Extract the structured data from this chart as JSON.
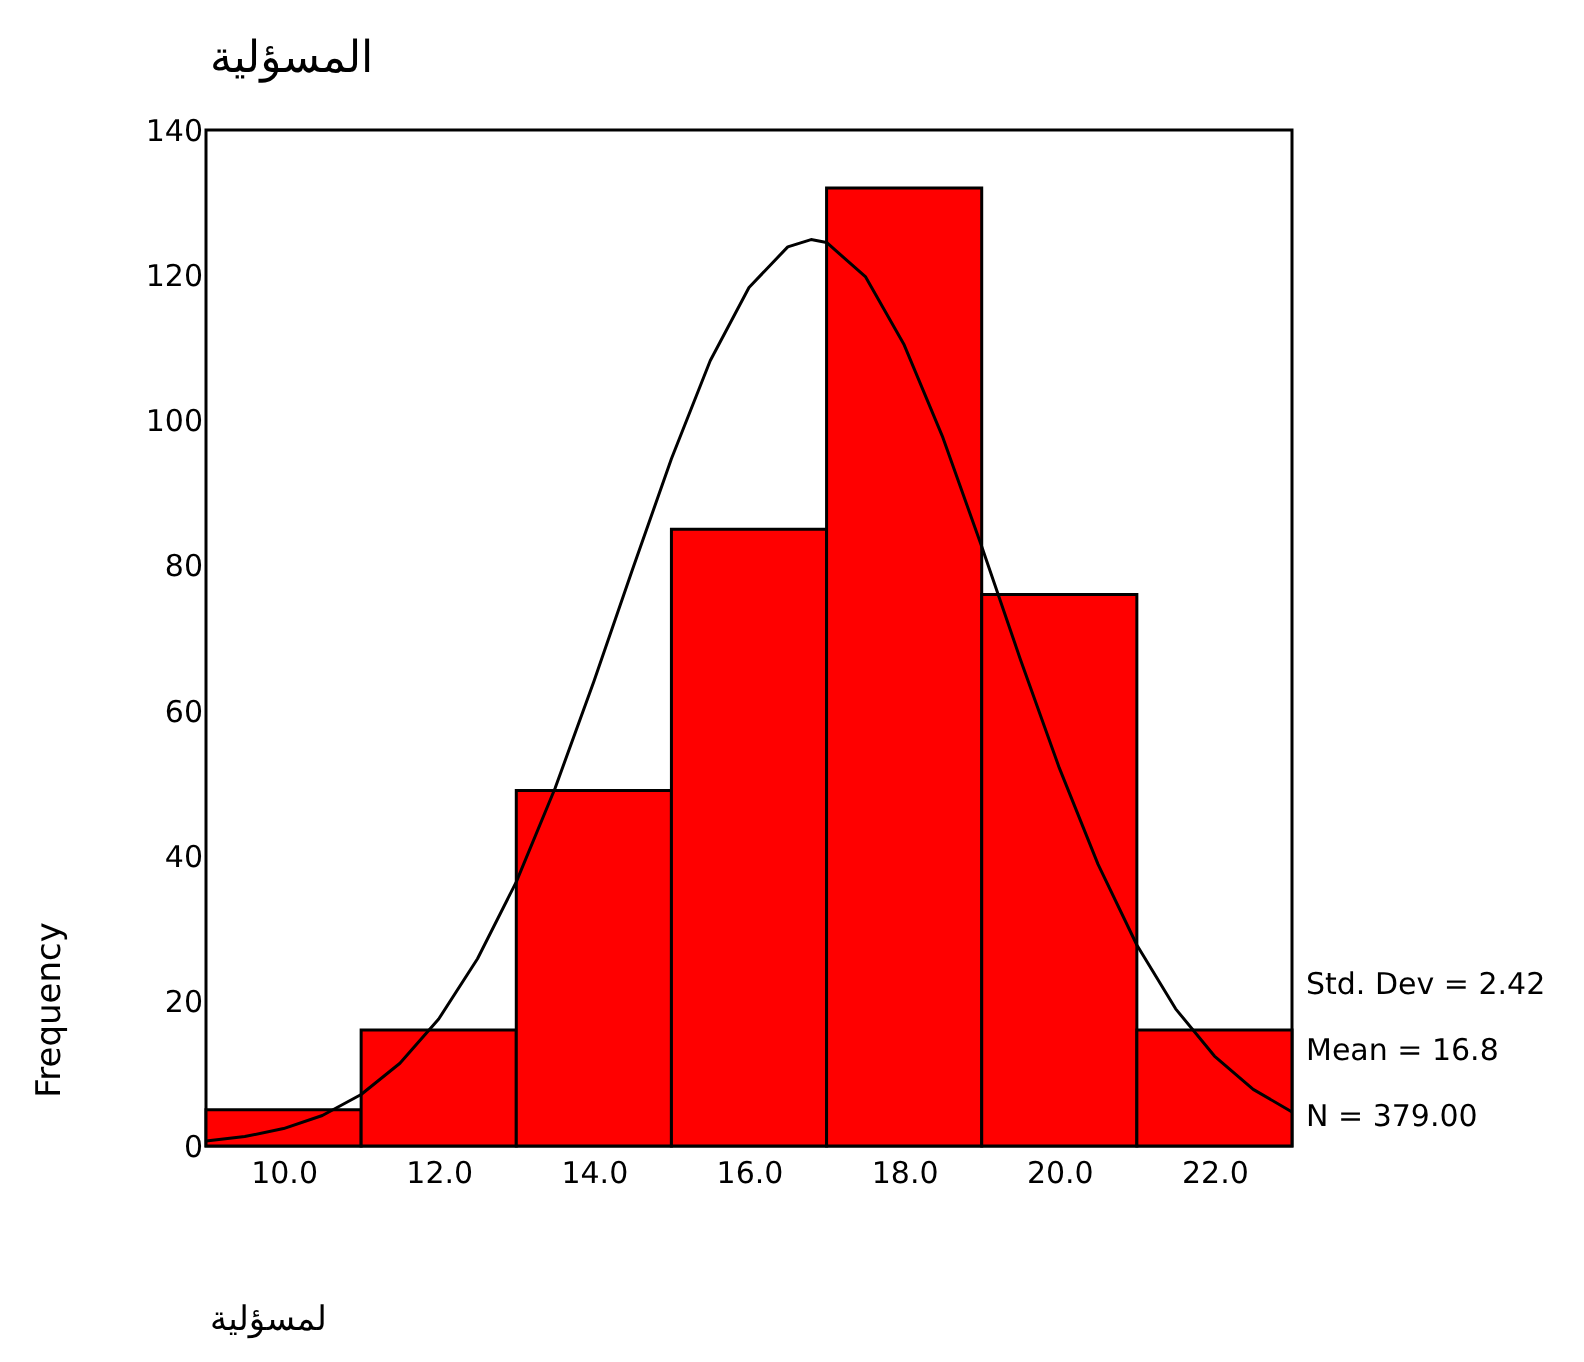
{
  "chart_data": {
    "type": "histogram",
    "title": "المسؤلية",
    "xlabel": "لمسؤلية",
    "ylabel": "Frequency",
    "bins": [
      9,
      11,
      13,
      15,
      17,
      19,
      21,
      23
    ],
    "series": [
      {
        "color": "#ff0000",
        "values": [
          5,
          16,
          49,
          85,
          132,
          76,
          16
        ]
      },
      {
        "type": "line",
        "color": "#000000",
        "x": [
          9,
          9.5,
          10,
          10.5,
          11,
          11.5,
          12,
          12.5,
          13,
          13.5,
          14,
          14.5,
          15,
          15.5,
          16,
          16.5,
          16.8,
          17,
          17.5,
          18,
          18.5,
          19,
          19.5,
          20,
          20.5,
          21,
          21.5,
          22,
          22.5,
          23
        ],
        "values": [
          0.7,
          1.3,
          2.4,
          4.2,
          7.1,
          11.4,
          17.5,
          25.8,
          36.4,
          49.3,
          64.0,
          79.5,
          94.7,
          108.2,
          118.3,
          123.9,
          124.9,
          124.5,
          119.8,
          110.4,
          97.6,
          82.6,
          67.0,
          52.1,
          38.8,
          27.7,
          18.9,
          12.4,
          7.8,
          4.7
        ]
      }
    ],
    "xlim": [
      9,
      23
    ],
    "xticks": [
      {
        "value": 10,
        "label": "10.0"
      },
      {
        "value": 12,
        "label": "12.0"
      },
      {
        "value": 14,
        "label": "14.0"
      },
      {
        "value": 16,
        "label": "16.0"
      },
      {
        "value": 18,
        "label": "18.0"
      },
      {
        "value": 20,
        "label": "20.0"
      },
      {
        "value": 22,
        "label": "22.0"
      }
    ],
    "ylim": [
      0,
      140
    ],
    "yticks": [
      0,
      20,
      40,
      60,
      80,
      100,
      120,
      140
    ],
    "grid": false,
    "annotations": [
      "Std. Dev = 2.42",
      "Mean = 16.8",
      "N = 379.00"
    ]
  }
}
